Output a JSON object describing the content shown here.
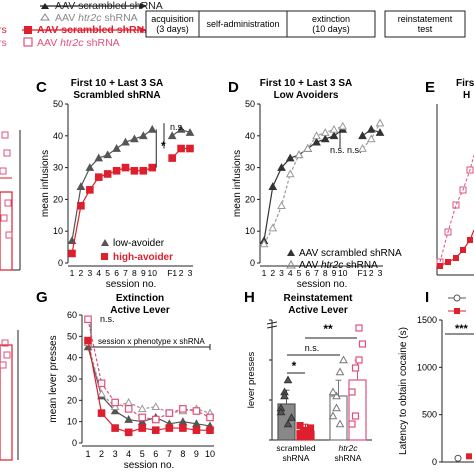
{
  "legend": {
    "items": [
      {
        "label": "AAV scrambled shRNA",
        "color": "#222222",
        "marker": "triangle-filled"
      },
      {
        "label": "AAV htr2c shRNA",
        "color": "#888888",
        "marker": "triangle-open"
      },
      {
        "label": "AAV scrambled shRNA",
        "color": "#dd1f2e",
        "marker": "square-filled"
      },
      {
        "label": "AAV htr2c shRNA",
        "color": "#e0507a",
        "marker": "square-open"
      }
    ],
    "left_fragments": [
      "rs",
      "rs"
    ]
  },
  "timeline": {
    "boxes": [
      {
        "title": "acquisition",
        "sub": "(3 days)"
      },
      {
        "title": "self-administration",
        "sub": ""
      },
      {
        "title": "extinction",
        "sub": "(10 days)"
      },
      {
        "title": "reinstatement",
        "sub": "test"
      }
    ]
  },
  "colors": {
    "low": "#555555",
    "high": "#dd1f2e",
    "htr": "#999999",
    "pink": "#e0507a",
    "dark": "#333333"
  },
  "panels": {
    "C": {
      "letter": "C",
      "title1": "First 10 + Last 3 SA",
      "title2": "Scrambled shRNA"
    },
    "D": {
      "letter": "D",
      "title1": "First 10 + Last 3 SA",
      "title2": "Low Avoiders"
    },
    "E": {
      "letter": "E",
      "title1": "Firs",
      "title2": "H"
    },
    "G": {
      "letter": "G",
      "title1": "Extinction",
      "title2": "Active Lever",
      "stat": "session x phenotype x shRNA"
    },
    "H": {
      "letter": "H",
      "title1": "Reinstatement",
      "title2": "Active Lever"
    },
    "I": {
      "letter": "I"
    }
  },
  "chart_data": [
    {
      "panel": "C",
      "type": "line",
      "title": "First 10 + Last 3 SA",
      "subtitle": "Scrambled shRNA",
      "xlabel": "session no.",
      "ylabel": "mean infusions",
      "ylim": [
        0,
        50
      ],
      "yticks": [
        0,
        10,
        20,
        30,
        40,
        50
      ],
      "categories": [
        "1",
        "2",
        "3",
        "4",
        "5",
        "6",
        "7",
        "8",
        "9",
        "10",
        "F1",
        "2",
        "3"
      ],
      "series": [
        {
          "name": "low-avoider",
          "values": [
            7,
            24,
            30,
            33,
            34,
            36,
            38,
            39,
            40,
            42,
            40,
            42,
            41
          ]
        },
        {
          "name": "high-avoider",
          "values": [
            3,
            18,
            23,
            27,
            28,
            29,
            30,
            29,
            29,
            30,
            33,
            36,
            36
          ]
        }
      ],
      "annotations": [
        "*",
        "n.s."
      ]
    },
    {
      "panel": "D",
      "type": "line",
      "title": "First 10 + Last 3 SA",
      "subtitle": "Low Avoiders",
      "xlabel": "session no.",
      "ylabel": "mean infusions",
      "ylim": [
        0,
        50
      ],
      "yticks": [
        0,
        10,
        20,
        30,
        40,
        50
      ],
      "categories": [
        "1",
        "2",
        "3",
        "4",
        "5",
        "6",
        "7",
        "8",
        "9",
        "10",
        "F1",
        "2",
        "3"
      ],
      "series": [
        {
          "name": "AAV scrambled shRNA",
          "values": [
            7,
            24,
            30,
            33,
            34,
            36,
            38,
            39,
            40,
            42,
            40,
            42,
            41
          ]
        },
        {
          "name": "AAV htr2c shRNA",
          "values": [
            6,
            11,
            18,
            28,
            34,
            36,
            40,
            41,
            42,
            43,
            36,
            39,
            44
          ]
        }
      ],
      "annotations": [
        "n.s.",
        "n.s."
      ]
    },
    {
      "panel": "G",
      "type": "line",
      "title": "Extinction",
      "subtitle": "Active Lever",
      "xlabel": "session no.",
      "ylabel": "mean lever presses",
      "ylim": [
        0,
        60
      ],
      "yticks": [
        0,
        10,
        20,
        30,
        40,
        50,
        60
      ],
      "categories": [
        "1",
        "2",
        "3",
        "4",
        "5",
        "6",
        "7",
        "8",
        "9",
        "10"
      ],
      "series": [
        {
          "name": "low-avoider AAV scrambled shRNA",
          "values": [
            45,
            22,
            15,
            11,
            10,
            12,
            9,
            10,
            9,
            8
          ]
        },
        {
          "name": "low-avoider AAV htr2c shRNA",
          "values": [
            47,
            23,
            17,
            19,
            16,
            17,
            14,
            15,
            16,
            14
          ]
        },
        {
          "name": "high-avoider AAV scrambled shRNA",
          "values": [
            48,
            14,
            7,
            5,
            7,
            6,
            7,
            7,
            6,
            6
          ]
        },
        {
          "name": "high-avoider AAV htr2c shRNA",
          "values": [
            58,
            28,
            19,
            16,
            12,
            11,
            14,
            16,
            15,
            12
          ]
        }
      ],
      "annotations": [
        "n.s.",
        "session x phenotype x shRNA"
      ]
    },
    {
      "panel": "H",
      "type": "bar",
      "title": "Reinstatement",
      "subtitle": "Active Lever",
      "ylabel": "lever presses",
      "ylim": [
        0,
        150
      ],
      "yticks": [
        0,
        50,
        100,
        150
      ],
      "categories": [
        "scrambled shRNA",
        "htr2c shRNA"
      ],
      "series": [
        {
          "name": "low-avoider",
          "values": [
            45,
            55
          ]
        },
        {
          "name": "high-avoider",
          "values": [
            11,
            75
          ]
        }
      ],
      "annotations": [
        "*",
        "n.s.",
        "**"
      ]
    },
    {
      "panel": "I",
      "type": "line",
      "ylabel": "Latency to obtain cocaine (s)",
      "ylim": [
        0,
        1500
      ],
      "yticks": [
        0,
        500,
        1000,
        1500
      ],
      "annotations": [
        "***"
      ]
    }
  ]
}
